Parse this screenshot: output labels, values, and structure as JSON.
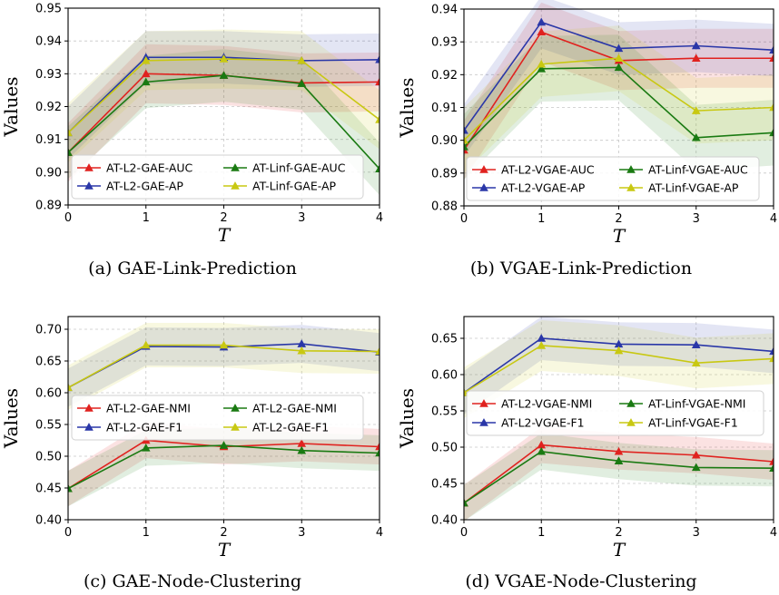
{
  "chart_data": [
    {
      "type": "line",
      "caption": "(a) GAE-Link-Prediction",
      "xlabel": "T",
      "ylabel": "Values",
      "x": [
        0,
        1,
        2,
        3,
        4
      ],
      "xlim": [
        0,
        4
      ],
      "ylim": [
        0.89,
        0.95
      ],
      "yticks": [
        "0.89",
        "0.90",
        "0.91",
        "0.92",
        "0.93",
        "0.94",
        "0.95"
      ],
      "grid": true,
      "legend_position": "lower-left",
      "series": [
        {
          "name": "AT-L2-GAE-AUC",
          "color": "#e0221f",
          "values": [
            0.906,
            0.93,
            0.9295,
            0.9272,
            0.9275
          ],
          "band": 0.009
        },
        {
          "name": "AT-L2-GAE-AP",
          "color": "#2a37a8",
          "values": [
            0.912,
            0.935,
            0.935,
            0.934,
            0.9343
          ],
          "band": 0.008
        },
        {
          "name": "AT-Linf-GAE-AUC",
          "color": "#1a7a12",
          "values": [
            0.906,
            0.9275,
            0.9295,
            0.927,
            0.901
          ],
          "band": 0.008
        },
        {
          "name": "AT-Linf-GAE-AP",
          "color": "#c8c812",
          "values": [
            0.912,
            0.934,
            0.9345,
            0.934,
            0.916
          ],
          "band": 0.009
        }
      ]
    },
    {
      "type": "line",
      "caption": "(b) VGAE-Link-Prediction",
      "xlabel": "T",
      "ylabel": "Values",
      "x": [
        0,
        1,
        2,
        3,
        4
      ],
      "xlim": [
        0,
        4
      ],
      "ylim": [
        0.88,
        0.94
      ],
      "yticks": [
        "0.88",
        "0.89",
        "0.90",
        "0.91",
        "0.92",
        "0.93",
        "0.94"
      ],
      "grid": true,
      "legend_position": "lower-center",
      "series": [
        {
          "name": "AT-L2-VGAE-AUC",
          "color": "#e0221f",
          "values": [
            0.897,
            0.933,
            0.9243,
            0.925,
            0.925
          ],
          "band": 0.009
        },
        {
          "name": "AT-L2-VGAE-AP",
          "color": "#2a37a8",
          "values": [
            0.903,
            0.936,
            0.928,
            0.9288,
            0.9275
          ],
          "band": 0.008
        },
        {
          "name": "AT-Linf-VGAE-AUC",
          "color": "#1a7a12",
          "values": [
            0.898,
            0.9218,
            0.9222,
            0.9008,
            0.9023
          ],
          "band": 0.01
        },
        {
          "name": "AT-Linf-VGAE-AP",
          "color": "#c8c812",
          "values": [
            0.9,
            0.9232,
            0.925,
            0.909,
            0.91
          ],
          "band": 0.01
        }
      ]
    },
    {
      "type": "line",
      "caption": "(c) GAE-Node-Clustering",
      "xlabel": "T",
      "ylabel": "Values",
      "x": [
        0,
        1,
        2,
        3,
        4
      ],
      "xlim": [
        0,
        4
      ],
      "ylim": [
        0.4,
        0.72
      ],
      "yticks": [
        "0.40",
        "0.45",
        "0.50",
        "0.55",
        "0.60",
        "0.65",
        "0.70"
      ],
      "grid": true,
      "legend_position": "center-left",
      "series": [
        {
          "name": "AT-L2-GAE-NMI",
          "color": "#e0221f",
          "values": [
            0.449,
            0.525,
            0.515,
            0.52,
            0.515
          ],
          "band": 0.028
        },
        {
          "name": "AT-L2-GAE-F1",
          "color": "#2a37a8",
          "values": [
            0.608,
            0.673,
            0.672,
            0.677,
            0.664
          ],
          "band": 0.03
        },
        {
          "name": "AT-L2-GAE-NMI",
          "color": "#1a7a12",
          "values": [
            0.449,
            0.513,
            0.517,
            0.509,
            0.505
          ],
          "band": 0.028
        },
        {
          "name": "AT-L2-GAE-F1",
          "color": "#c8c812",
          "values": [
            0.608,
            0.675,
            0.675,
            0.666,
            0.665
          ],
          "band": 0.035
        }
      ]
    },
    {
      "type": "line",
      "caption": "(d) VGAE-Node-Clustering",
      "xlabel": "T",
      "ylabel": "Values",
      "x": [
        0,
        1,
        2,
        3,
        4
      ],
      "xlim": [
        0,
        4
      ],
      "ylim": [
        0.4,
        0.68
      ],
      "yticks": [
        "0.40",
        "0.45",
        "0.50",
        "0.55",
        "0.60",
        "0.65"
      ],
      "grid": true,
      "legend_position": "center",
      "series": [
        {
          "name": "AT-L2-VGAE-NMI",
          "color": "#e0221f",
          "values": [
            0.423,
            0.503,
            0.494,
            0.489,
            0.48
          ],
          "band": 0.025
        },
        {
          "name": "AT-L2-VGAE-F1",
          "color": "#2a37a8",
          "values": [
            0.575,
            0.65,
            0.642,
            0.641,
            0.632
          ],
          "band": 0.03
        },
        {
          "name": "AT-Linf-VGAE-NMI",
          "color": "#1a7a12",
          "values": [
            0.423,
            0.494,
            0.481,
            0.472,
            0.471
          ],
          "band": 0.025
        },
        {
          "name": "AT-Linf-VGAE-F1",
          "color": "#c8c812",
          "values": [
            0.575,
            0.64,
            0.633,
            0.616,
            0.622
          ],
          "band": 0.035
        }
      ]
    }
  ]
}
